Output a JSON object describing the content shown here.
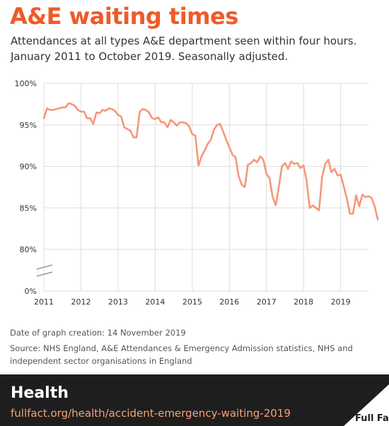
{
  "header": {
    "title": "A&E waiting times",
    "subtitle_line1": "Attendances at all types A&E department seen within four hours.",
    "subtitle_line2": "January 2011 to October 2019. Seasonally adjusted."
  },
  "notes": {
    "created": "Date of graph creation: 14 November 2019",
    "source_line1": "Source: NHS England, A&E Attendances & Emergency Admission statistics, NHS and",
    "source_line2": "independent sector organisations in England"
  },
  "footer": {
    "section": "Health",
    "url": "fullfact.org/health/accident-emergency-waiting-2019",
    "brand": "Full Fact"
  },
  "colors": {
    "title": "#f05a28",
    "line": "#f5987a",
    "footer_bg": "#1e1e1e",
    "url": "#f6a27a"
  },
  "chart_data": {
    "type": "line",
    "title": "",
    "xlabel": "",
    "ylabel": "",
    "ylim": [
      0,
      100
    ],
    "axis_break": true,
    "grid": true,
    "y_ticks": [
      {
        "label": "100%",
        "value": 100
      },
      {
        "label": "95%",
        "value": 95
      },
      {
        "label": "90%",
        "value": 90
      },
      {
        "label": "85%",
        "value": 85
      },
      {
        "label": "80%",
        "value": 80
      },
      {
        "label": "0%",
        "value": 0
      }
    ],
    "x_ticks": [
      "2011",
      "2012",
      "2013",
      "2014",
      "2015",
      "2016",
      "2017",
      "2018",
      "2019"
    ],
    "series": [
      {
        "start": "2011-01",
        "values": [
          95.8,
          97.0,
          96.8,
          96.8,
          96.9,
          97.0,
          97.1,
          97.1,
          97.6,
          97.5,
          97.3,
          96.8,
          96.6,
          96.6,
          95.8,
          95.8,
          95.1,
          96.5,
          96.4,
          96.8,
          96.7,
          97.0,
          96.9,
          96.7,
          96.2,
          96.0,
          94.7,
          94.5,
          94.3,
          93.5,
          93.5,
          96.6,
          96.9,
          96.8,
          96.5,
          95.8,
          95.7,
          95.9,
          95.3,
          95.3,
          94.7,
          95.6,
          95.3,
          94.9,
          95.3,
          95.3,
          95.2,
          94.8,
          93.9,
          93.7,
          90.1,
          91.2,
          91.9,
          92.7,
          93.2,
          94.4,
          95.0,
          95.1,
          94.2,
          93.2,
          92.3,
          91.4,
          91.1,
          88.8,
          87.8,
          87.5,
          90.2,
          90.4,
          90.8,
          90.5,
          91.2,
          90.8,
          89.1,
          88.6,
          86.3,
          85.3,
          87.5,
          90.0,
          90.4,
          89.7,
          90.6,
          90.3,
          90.4,
          89.8,
          90.1,
          88.2,
          85.0,
          85.3,
          85.0,
          84.7,
          88.7,
          90.3,
          90.8,
          89.3,
          89.7,
          88.9,
          89.0,
          87.6,
          86.1,
          84.3,
          84.3,
          86.5,
          85.2,
          86.6,
          86.3,
          86.4,
          86.2,
          85.2,
          83.6
        ]
      }
    ]
  }
}
